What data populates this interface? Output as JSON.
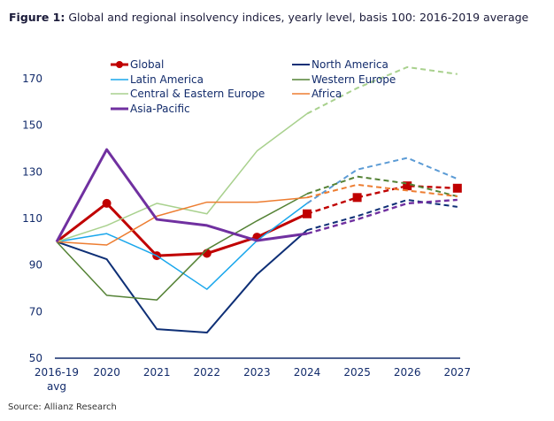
{
  "chart_data": {
    "type": "line",
    "title_prefix": "Figure 1:",
    "title": "Global and regional insolvency indices, yearly level, basis 100: 2016-2019 average",
    "source": "Source: Allianz Research",
    "categories": [
      "2016-19 avg",
      "2020",
      "2021",
      "2022",
      "2023",
      "2024",
      "2025",
      "2026",
      "2027"
    ],
    "category_lines": [
      [
        "2016-19",
        "avg"
      ],
      [
        "2020"
      ],
      [
        "2021"
      ],
      [
        "2022"
      ],
      [
        "2023"
      ],
      [
        "2024"
      ],
      [
        "2025"
      ],
      [
        "2026"
      ],
      [
        "2027"
      ]
    ],
    "forecast_from": "2024",
    "ylim": [
      50,
      180
    ],
    "yticks": [
      50,
      70,
      90,
      110,
      130,
      150,
      170
    ],
    "grid": false,
    "legend_position": "top-left",
    "series": [
      {
        "name": "Global",
        "color": "#c00000",
        "width": 3,
        "marker": "circle",
        "values": [
          100,
          116.5,
          94,
          95,
          102,
          112,
          119,
          124,
          123
        ]
      },
      {
        "name": "North America",
        "color": "#0e2f76",
        "width": 2,
        "values": [
          100,
          92.5,
          62.5,
          61,
          86,
          105,
          111,
          118,
          115
        ]
      },
      {
        "name": "Latin America",
        "color": "#1aa7ec",
        "width": 1.5,
        "forecast_color": "#5b9bd5",
        "values": [
          100,
          103.5,
          94,
          79.6,
          100.5,
          116.5,
          131,
          136,
          127
        ]
      },
      {
        "name": "Western Europe",
        "color": "#548235",
        "width": 1.5,
        "values": [
          100,
          77,
          75,
          96.7,
          109,
          120.6,
          128,
          125,
          119.5
        ]
      },
      {
        "name": "Central & Eastern Europe",
        "color": "#a9d18e",
        "width": 1.5,
        "values": [
          100,
          107,
          116.5,
          112,
          139,
          155,
          166,
          175,
          172
        ]
      },
      {
        "name": "Africa",
        "color": "#ed7d31",
        "width": 1.5,
        "values": [
          100,
          98.6,
          111,
          117,
          117,
          119,
          124.5,
          122,
          119.5
        ]
      },
      {
        "name": "Asia-Pacific",
        "color": "#7030a0",
        "width": 3,
        "values": [
          100,
          139.6,
          109.6,
          107,
          100.5,
          103.5,
          109.6,
          116.5,
          118
        ]
      }
    ]
  }
}
